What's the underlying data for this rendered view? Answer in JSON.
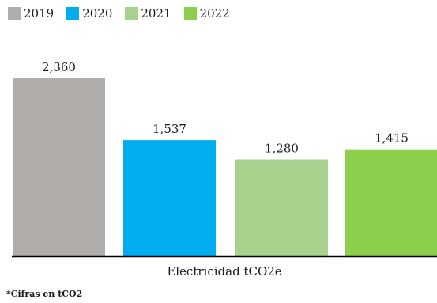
{
  "chart_data": {
    "type": "bar",
    "category": "Electricidad tCO2e",
    "series": [
      {
        "name": "2019",
        "value": 2360,
        "label": "2,360",
        "color": "#b1adab"
      },
      {
        "name": "2020",
        "value": 1537,
        "label": "1,537",
        "color": "#00aeef"
      },
      {
        "name": "2021",
        "value": 1280,
        "label": "1,280",
        "color": "#a8d18d"
      },
      {
        "name": "2022",
        "value": 1415,
        "label": "1,415",
        "color": "#8ccf4d"
      }
    ],
    "ylim": [
      0,
      2360
    ],
    "legend_position": "top-left",
    "grid": false
  },
  "footnote": "*Cifras en tCO2"
}
